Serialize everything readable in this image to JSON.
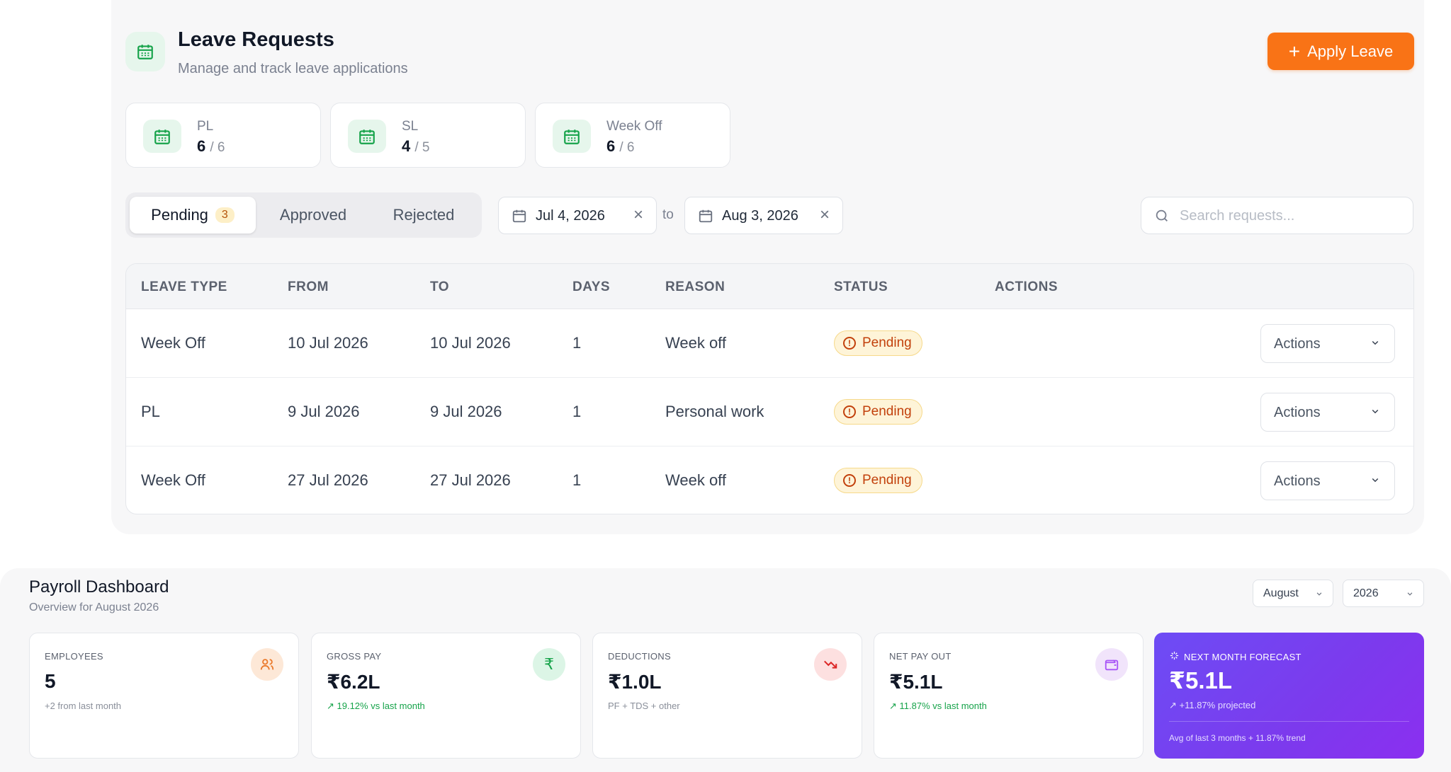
{
  "leave": {
    "title": "Leave Requests",
    "subtitle": "Manage and track leave applications",
    "apply_label": "Apply Leave",
    "balances": [
      {
        "label": "PL",
        "used": "6",
        "total": "/ 6"
      },
      {
        "label": "SL",
        "used": "4",
        "total": "/ 5"
      },
      {
        "label": "Week Off",
        "used": "6",
        "total": "/ 6"
      }
    ],
    "tabs": [
      {
        "label": "Pending",
        "count": "3"
      },
      {
        "label": "Approved"
      },
      {
        "label": "Rejected"
      }
    ],
    "filters": {
      "from_date": "Jul 4, 2026",
      "to_label": "to",
      "to_date": "Aug 3, 2026",
      "search_placeholder": "Search requests..."
    },
    "table": {
      "headers": [
        "LEAVE TYPE",
        "FROM",
        "TO",
        "DAYS",
        "REASON",
        "STATUS",
        "ACTIONS"
      ],
      "rows": [
        {
          "type": "Week Off",
          "from": "10 Jul 2026",
          "to": "10 Jul 2026",
          "days": "1",
          "reason": "Week off",
          "status": "Pending",
          "action": "Actions"
        },
        {
          "type": "PL",
          "from": "9 Jul 2026",
          "to": "9 Jul 2026",
          "days": "1",
          "reason": "Personal work",
          "status": "Pending",
          "action": "Actions"
        },
        {
          "type": "Week Off",
          "from": "27 Jul 2026",
          "to": "27 Jul 2026",
          "days": "1",
          "reason": "Week off",
          "status": "Pending",
          "action": "Actions"
        }
      ]
    }
  },
  "payroll": {
    "title": "Payroll Dashboard",
    "subtitle": "Overview for August 2026",
    "month": "August",
    "year": "2026",
    "cards": [
      {
        "label": "EMPLOYEES",
        "value": "5",
        "note": "+2 from last month",
        "icon": "users-icon"
      },
      {
        "label": "GROSS PAY",
        "value": "₹6.2L",
        "note": "↗ 19.12% vs last month",
        "icon": "rupee-icon"
      },
      {
        "label": "DEDUCTIONS",
        "value": "₹1.0L",
        "note": "PF + TDS + other",
        "icon": "trend-down-icon"
      },
      {
        "label": "NET PAY OUT",
        "value": "₹5.1L",
        "note": "↗ 11.87% vs last month",
        "icon": "wallet-icon"
      }
    ],
    "forecast": {
      "label": "NEXT MONTH FORECAST",
      "value": "₹5.1L",
      "note": "↗ +11.87% projected",
      "footer": "Avg of last 3 months + 11.87% trend"
    }
  },
  "colors": {
    "accent": "#f97316",
    "green": "#16a34a",
    "pending_text": "#c2410c",
    "forecast": "#7c3aed"
  }
}
